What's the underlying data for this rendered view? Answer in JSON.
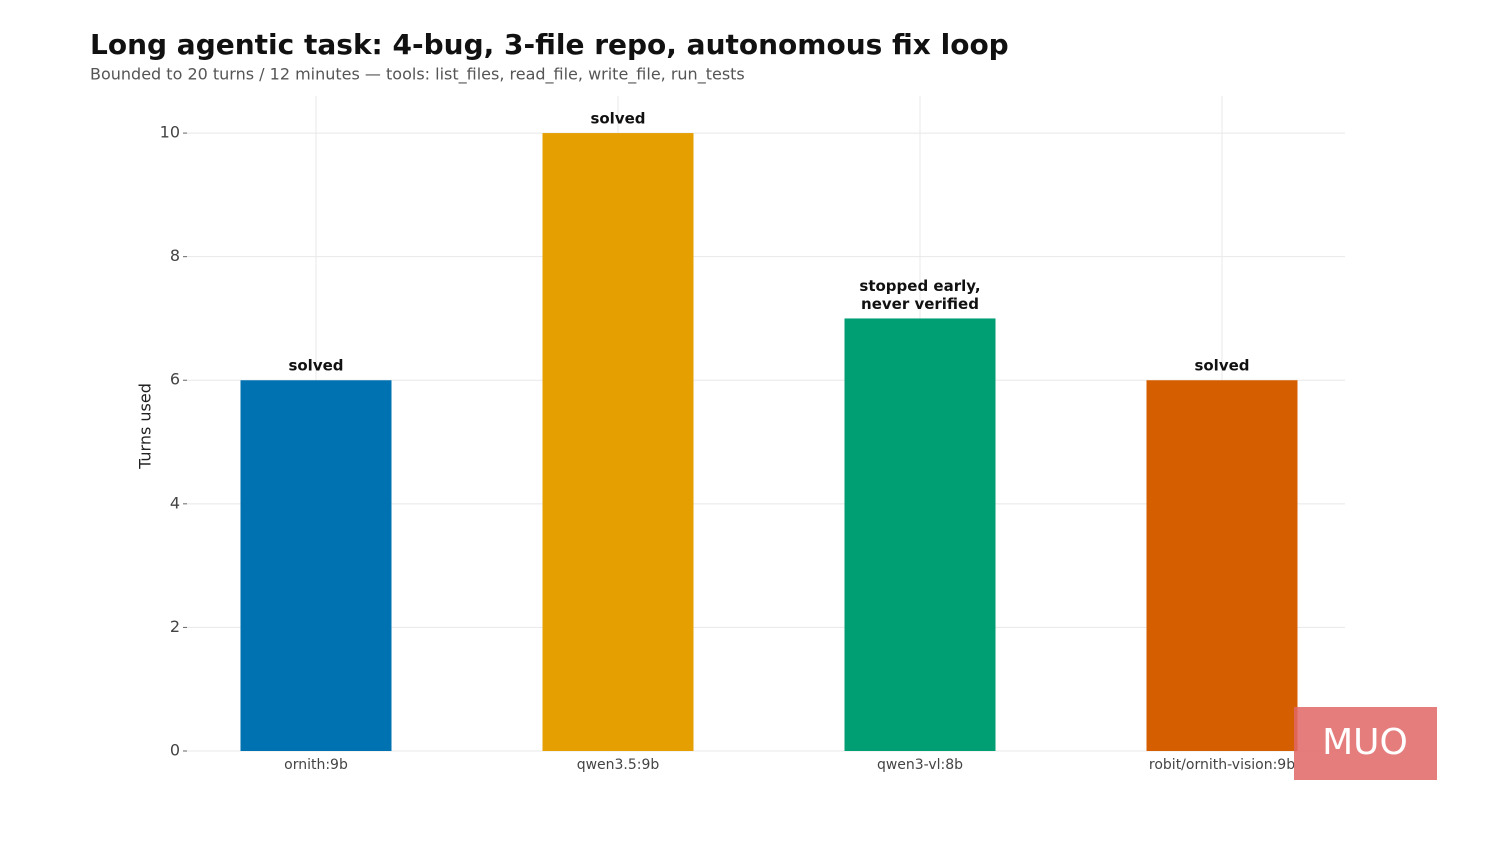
{
  "chart_data": {
    "type": "bar",
    "title": "Long agentic task: 4-bug, 3-file repo, autonomous fix loop",
    "subtitle": "Bounded to 20 turns / 12 minutes — tools: list_files, read_file, write_file, run_tests",
    "y_label": "Turns used",
    "categories": [
      "ornith:9b",
      "qwen3.5:9b",
      "qwen3-vl:8b",
      "robit/ornith-vision:9b"
    ],
    "values": [
      6,
      10,
      7,
      6
    ],
    "colors": [
      "#0072b2",
      "#e69f00",
      "#009e73",
      "#d55e00"
    ],
    "annotations": [
      [
        "solved"
      ],
      [
        "solved"
      ],
      [
        "stopped early,",
        "never verified"
      ],
      [
        "solved"
      ]
    ],
    "ylim": [
      0,
      10.6
    ],
    "yticks": [
      0,
      2,
      4,
      6,
      8,
      10
    ],
    "grid": true,
    "watermark": "MUO"
  }
}
